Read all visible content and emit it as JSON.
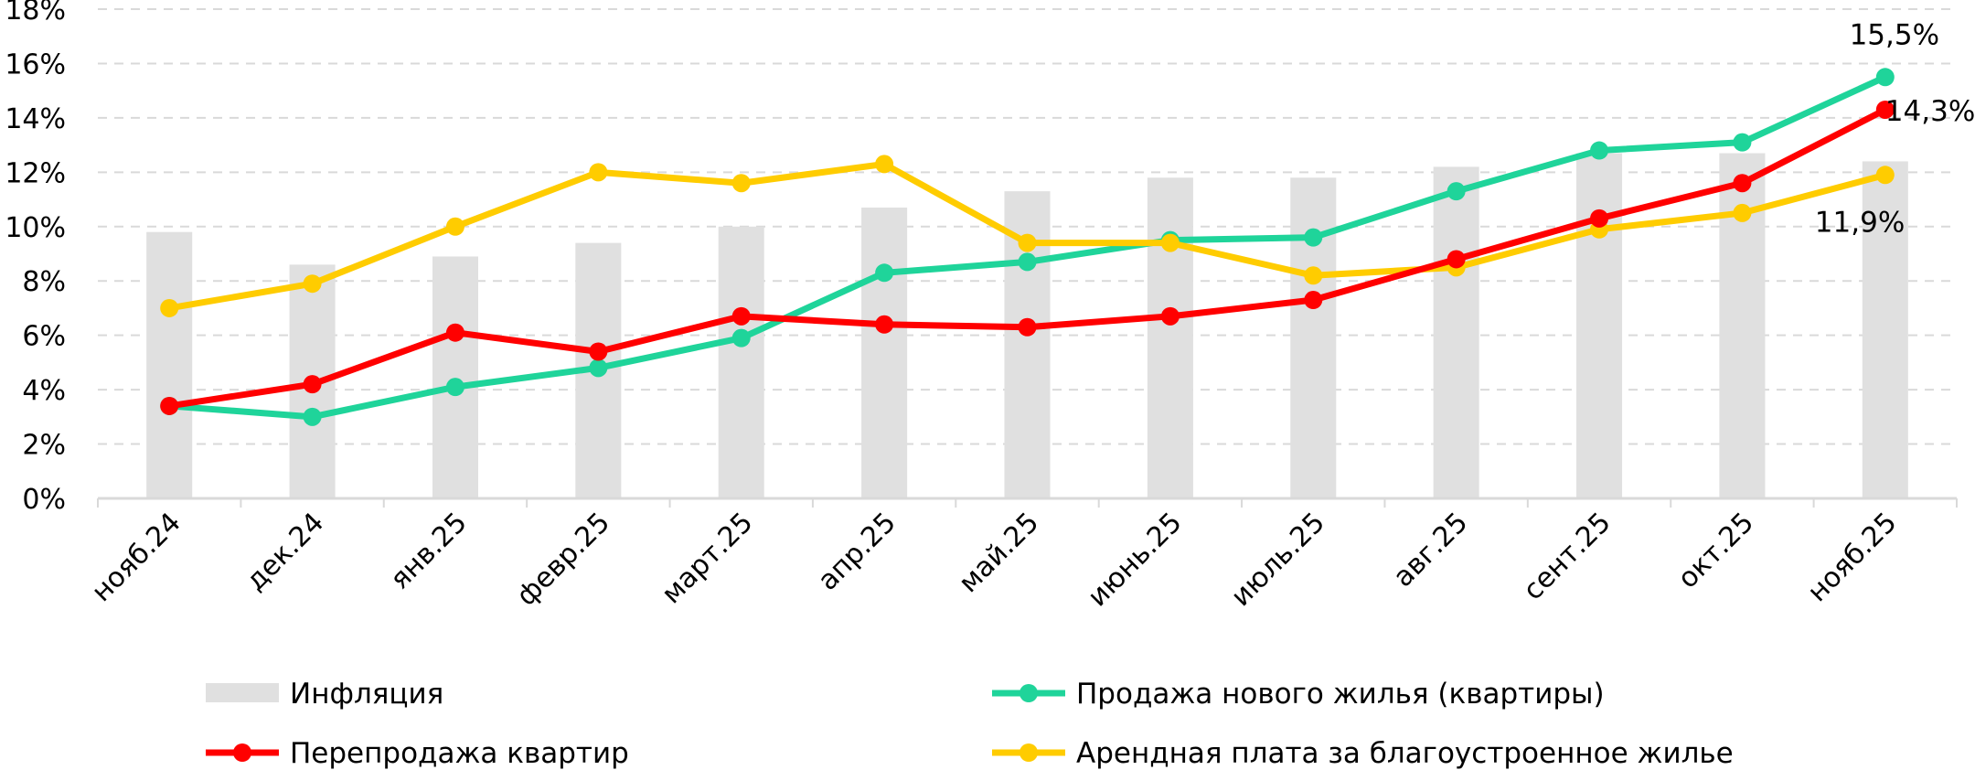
{
  "chart_data": {
    "type": "bar",
    "categories": [
      "нояб.24",
      "дек.24",
      "янв.25",
      "февр.25",
      "март.25",
      "апр.25",
      "май.25",
      "июнь.25",
      "июль.25",
      "авг.25",
      "сент.25",
      "окт.25",
      "нояб.25"
    ],
    "ylim": [
      0,
      18
    ],
    "yticks": [
      "0%",
      "2%",
      "4%",
      "6%",
      "8%",
      "10%",
      "12%",
      "14%",
      "16%",
      "18%"
    ],
    "grid": "horizontal dashed",
    "legend_position": "bottom",
    "series": [
      {
        "name": "Инфляция",
        "kind": "bar",
        "color": "#e0e0e0",
        "values": [
          9.8,
          8.6,
          8.9,
          9.4,
          10.0,
          10.7,
          11.3,
          11.8,
          11.8,
          12.2,
          12.7,
          12.7,
          12.4
        ]
      },
      {
        "name": "Продажа нового жилья (квартиры)",
        "kind": "line",
        "color": "#1fd49a",
        "values": [
          3.4,
          3.0,
          4.1,
          4.8,
          5.9,
          8.3,
          8.7,
          9.5,
          9.6,
          11.3,
          12.8,
          13.1,
          15.5
        ]
      },
      {
        "name": "Перепродажа квартир",
        "kind": "line",
        "color": "#ff0000",
        "values": [
          3.4,
          4.2,
          6.1,
          5.4,
          6.7,
          6.4,
          6.3,
          6.7,
          7.3,
          8.8,
          10.3,
          11.6,
          14.3
        ]
      },
      {
        "name": "Арендная плата за благоустроенное жилье",
        "kind": "line",
        "color": "#ffcc00",
        "values": [
          7.0,
          7.9,
          10.0,
          12.0,
          11.6,
          12.3,
          9.4,
          9.4,
          8.2,
          8.5,
          9.9,
          10.5,
          11.9
        ]
      }
    ],
    "annotations": [
      {
        "series": "Продажа нового жилья (квартиры)",
        "index": 12,
        "text": "15,5%"
      },
      {
        "series": "Перепродажа квартир",
        "index": 12,
        "text": "14,3%"
      },
      {
        "series": "Арендная плата за благоустроенное жилье",
        "index": 12,
        "text": "11,9%"
      }
    ]
  }
}
